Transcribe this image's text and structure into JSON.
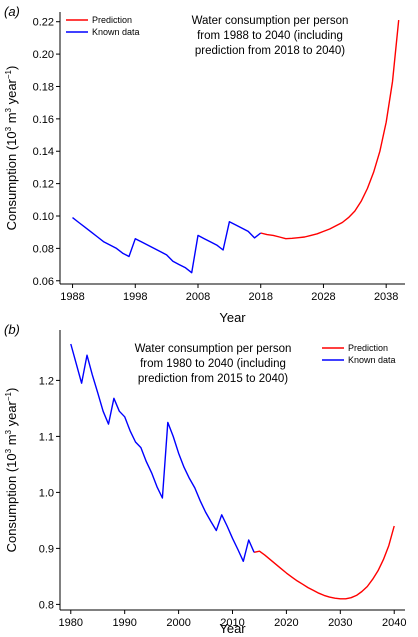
{
  "chart_data": [
    {
      "type": "line",
      "panel_label": "(a)",
      "annotation": [
        "Water consumption per person",
        "from 1988 to 2040 (including",
        "prediction from 2018 to 2040)"
      ],
      "xlabel": "Year",
      "ylabel_parts": [
        "Consumption (10",
        "3",
        " m",
        "3",
        " year",
        "−1",
        ")"
      ],
      "xlim": [
        1986,
        2041
      ],
      "ylim": [
        0.058,
        0.226
      ],
      "xticks": [
        1988,
        1998,
        2008,
        2018,
        2028,
        2038
      ],
      "yticks": [
        0.06,
        0.08,
        0.1,
        0.12,
        0.14,
        0.16,
        0.18,
        0.2,
        0.22
      ],
      "ytick_labels": [
        "0.06",
        "0.08",
        "0.10",
        "0.12",
        "0.14",
        "0.16",
        "0.18",
        "0.20",
        "0.22"
      ],
      "legend": "top-left",
      "series": [
        {
          "name": "Prediction",
          "color": "#ff0000",
          "x": [
            2018,
            2019,
            2020,
            2021,
            2022,
            2023,
            2024,
            2025,
            2026,
            2027,
            2028,
            2029,
            2030,
            2031,
            2032,
            2033,
            2034,
            2035,
            2036,
            2037,
            2038,
            2039,
            2040
          ],
          "y": [
            0.0895,
            0.0885,
            0.088,
            0.087,
            0.086,
            0.0862,
            0.0866,
            0.087,
            0.088,
            0.089,
            0.0905,
            0.092,
            0.094,
            0.096,
            0.099,
            0.103,
            0.109,
            0.117,
            0.127,
            0.14,
            0.158,
            0.183,
            0.221
          ]
        },
        {
          "name": "Known data",
          "color": "#0000ff",
          "x": [
            1988,
            1989,
            1990,
            1991,
            1992,
            1993,
            1994,
            1995,
            1996,
            1997,
            1998,
            1999,
            2000,
            2001,
            2002,
            2003,
            2004,
            2005,
            2006,
            2007,
            2008,
            2009,
            2010,
            2011,
            2012,
            2013,
            2014,
            2015,
            2016,
            2017,
            2018
          ],
          "y": [
            0.099,
            0.096,
            0.093,
            0.09,
            0.087,
            0.084,
            0.082,
            0.08,
            0.077,
            0.075,
            0.086,
            0.084,
            0.082,
            0.08,
            0.078,
            0.076,
            0.072,
            0.07,
            0.068,
            0.065,
            0.088,
            0.086,
            0.084,
            0.082,
            0.079,
            0.0965,
            0.0945,
            0.0925,
            0.0905,
            0.0865,
            0.0895
          ]
        }
      ]
    },
    {
      "type": "line",
      "panel_label": "(b)",
      "annotation": [
        "Water consumption per person",
        "from 1980 to 2040 (including",
        "prediction from 2015 to 2040)"
      ],
      "xlabel": "Year",
      "ylabel_parts": [
        "Consumption (10",
        "3",
        " m",
        "3",
        " year",
        "−1",
        ")"
      ],
      "xlim": [
        1978,
        2042
      ],
      "ylim": [
        0.79,
        1.29
      ],
      "xticks": [
        1980,
        1990,
        2000,
        2010,
        2020,
        2030,
        2040
      ],
      "yticks": [
        0.8,
        0.9,
        1.0,
        1.1,
        1.2
      ],
      "ytick_labels": [
        "0.8",
        "0.9",
        "1.0",
        "1.1",
        "1.2"
      ],
      "legend": "top-right",
      "series": [
        {
          "name": "Prediction",
          "color": "#ff0000",
          "x": [
            2014,
            2015,
            2016,
            2017,
            2018,
            2019,
            2020,
            2021,
            2022,
            2023,
            2024,
            2025,
            2026,
            2027,
            2028,
            2029,
            2030,
            2031,
            2032,
            2033,
            2034,
            2035,
            2036,
            2037,
            2038,
            2039,
            2040
          ],
          "y": [
            0.893,
            0.895,
            0.888,
            0.88,
            0.872,
            0.864,
            0.856,
            0.849,
            0.842,
            0.836,
            0.83,
            0.825,
            0.82,
            0.816,
            0.813,
            0.811,
            0.81,
            0.81,
            0.812,
            0.816,
            0.823,
            0.832,
            0.845,
            0.86,
            0.88,
            0.905,
            0.94
          ]
        },
        {
          "name": "Known data",
          "color": "#0000ff",
          "x": [
            1980,
            1981,
            1982,
            1983,
            1984,
            1985,
            1986,
            1987,
            1988,
            1989,
            1990,
            1991,
            1992,
            1993,
            1994,
            1995,
            1996,
            1997,
            1998,
            1999,
            2000,
            2001,
            2002,
            2003,
            2004,
            2005,
            2006,
            2007,
            2008,
            2009,
            2010,
            2011,
            2012,
            2013,
            2014
          ],
          "y": [
            1.265,
            1.23,
            1.195,
            1.245,
            1.21,
            1.178,
            1.145,
            1.122,
            1.168,
            1.145,
            1.135,
            1.11,
            1.09,
            1.08,
            1.055,
            1.035,
            1.01,
            0.99,
            1.125,
            1.1,
            1.07,
            1.045,
            1.025,
            1.008,
            0.985,
            0.965,
            0.948,
            0.932,
            0.96,
            0.94,
            0.918,
            0.898,
            0.877,
            0.915,
            0.893
          ]
        }
      ]
    }
  ]
}
